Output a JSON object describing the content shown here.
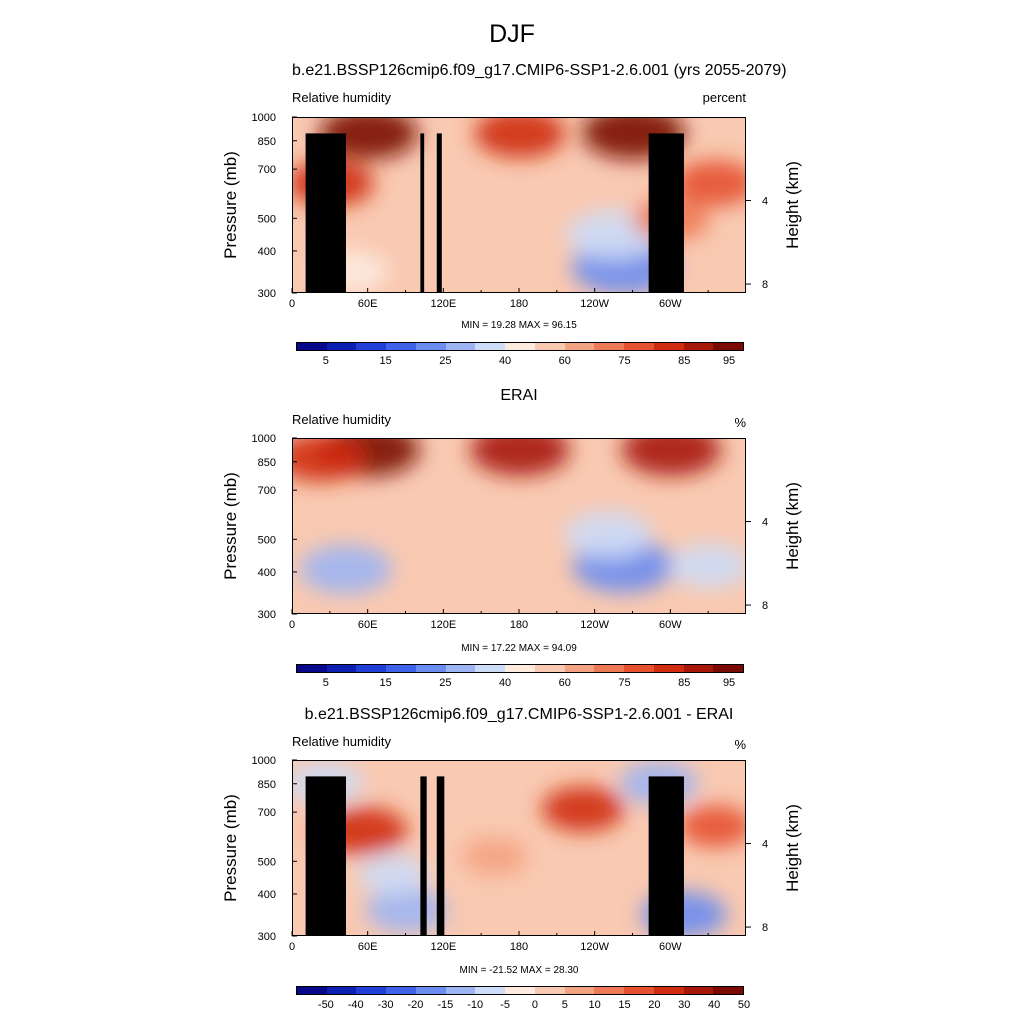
{
  "title": "DJF",
  "palette": [
    "#08088a",
    "#0d1fb0",
    "#1f3fd6",
    "#3e63e8",
    "#6b8def",
    "#9db5f2",
    "#cddcf7",
    "#fdebe0",
    "#f9c9b1",
    "#f4a382",
    "#ee7a55",
    "#e65130",
    "#cf2c12",
    "#a7180a",
    "#7a0a04"
  ],
  "panels": [
    {
      "title": "b.e21.BSSP126cmip6.f09_g17.CMIP6-SSP1-2.6.001 (yrs 2055-2079)",
      "left_label": "Relative humidity",
      "right_label": "percent",
      "y_label": "Pressure (mb)",
      "y2_label": "Height (km)",
      "minmax": "MIN =  19.28  MAX =  96.15",
      "colorbar_labels": [
        "5",
        "15",
        "25",
        "40",
        "60",
        "75",
        "85",
        "95"
      ],
      "chart_data": {
        "type": "heatmap",
        "title": "b.e21.BSSP126cmip6.f09_g17.CMIP6-SSP1-2.6.001 (yrs 2055-2079)",
        "xlabel": "",
        "ylabel": "Pressure (mb)",
        "xlim": [
          0,
          360
        ],
        "ylim": [
          1000,
          300
        ],
        "x_ticks": [
          "0",
          "60E",
          "120E",
          "180",
          "120W",
          "60W"
        ],
        "x_tick_values": [
          0,
          60,
          120,
          180,
          240,
          300
        ],
        "y_ticks": [
          "300",
          "400",
          "500",
          "700",
          "850",
          "1000"
        ],
        "y_tick_values": [
          300,
          400,
          500,
          700,
          850,
          1000
        ],
        "y2_ticks": [
          "8",
          "4"
        ],
        "y2_tick_values_km": [
          8,
          4
        ],
        "min": 19.28,
        "max": 96.15,
        "units": "percent",
        "levels": [
          5,
          10,
          15,
          20,
          25,
          30,
          40,
          50,
          60,
          65,
          75,
          80,
          85,
          90,
          95
        ],
        "background_value": 58,
        "features": [
          {
            "lon": 262,
            "p": 360,
            "value": 22
          },
          {
            "lon": 254,
            "p": 450,
            "value": 30
          },
          {
            "lon": 45,
            "p": 350,
            "value": 45
          },
          {
            "lon": 30,
            "p": 640,
            "value": 80
          },
          {
            "lon": 270,
            "p": 905,
            "value": 94
          },
          {
            "lon": 180,
            "p": 900,
            "value": 84
          },
          {
            "lon": 60,
            "p": 900,
            "value": 90
          },
          {
            "lon": 335,
            "p": 640,
            "value": 78
          },
          {
            "lon": 300,
            "p": 500,
            "value": 72
          }
        ],
        "terrain": [
          {
            "lon": [
              10,
              42
            ],
            "p_top": 900
          },
          {
            "lon": [
              28,
              35
            ],
            "p_top": 850
          },
          {
            "lon": [
              101,
              104
            ],
            "p_top": 900
          },
          {
            "lon": [
              114,
              118
            ],
            "p_top": 900
          },
          {
            "lon": [
              282,
              310
            ],
            "p_top": 900
          }
        ]
      }
    },
    {
      "title": "ERAI",
      "left_label": "Relative humidity",
      "right_label": "%",
      "y_label": "Pressure (mb)",
      "y2_label": "Height (km)",
      "minmax": "MIN =  17.22  MAX =  94.09",
      "colorbar_labels": [
        "5",
        "15",
        "25",
        "40",
        "60",
        "75",
        "85",
        "95"
      ],
      "chart_data": {
        "type": "heatmap",
        "title": "ERAI",
        "xlabel": "",
        "ylabel": "Pressure (mb)",
        "xlim": [
          0,
          360
        ],
        "ylim": [
          1000,
          300
        ],
        "x_ticks": [
          "0",
          "60E",
          "120E",
          "180",
          "120W",
          "60W"
        ],
        "x_tick_values": [
          0,
          60,
          120,
          180,
          240,
          300
        ],
        "y_ticks": [
          "300",
          "400",
          "500",
          "700",
          "850",
          "1000"
        ],
        "y_tick_values": [
          300,
          400,
          500,
          700,
          850,
          1000
        ],
        "y2_ticks": [
          "8",
          "4"
        ],
        "y2_tick_values_km": [
          8,
          4
        ],
        "min": 17.22,
        "max": 94.09,
        "units": "%",
        "levels": [
          5,
          10,
          15,
          20,
          25,
          30,
          40,
          50,
          60,
          65,
          75,
          80,
          85,
          90,
          95
        ],
        "background_value": 55,
        "features": [
          {
            "lon": 262,
            "p": 420,
            "value": 20
          },
          {
            "lon": 250,
            "p": 520,
            "value": 32
          },
          {
            "lon": 42,
            "p": 410,
            "value": 28
          },
          {
            "lon": 330,
            "p": 420,
            "value": 38
          },
          {
            "lon": 180,
            "p": 930,
            "value": 88
          },
          {
            "lon": 60,
            "p": 930,
            "value": 90
          },
          {
            "lon": 300,
            "p": 930,
            "value": 88
          },
          {
            "lon": 22,
            "p": 880,
            "value": 80
          }
        ],
        "terrain": []
      }
    },
    {
      "title": "b.e21.BSSP126cmip6.f09_g17.CMIP6-SSP1-2.6.001 - ERAI",
      "left_label": "Relative humidity",
      "right_label": "%",
      "y_label": "Pressure (mb)",
      "y2_label": "Height (km)",
      "minmax": "MIN = -21.52  MAX =  28.30",
      "colorbar_labels": [
        "-50",
        "-40",
        "-30",
        "-20",
        "-15",
        "-10",
        "-5",
        "0",
        "5",
        "10",
        "15",
        "20",
        "30",
        "40",
        "50"
      ],
      "chart_data": {
        "type": "heatmap",
        "title": "b.e21.BSSP126cmip6.f09_g17.CMIP6-SSP1-2.6.001 - ERAI",
        "xlabel": "",
        "ylabel": "Pressure (mb)",
        "xlim": [
          0,
          360
        ],
        "ylim": [
          1000,
          300
        ],
        "x_ticks": [
          "0",
          "60E",
          "120E",
          "180",
          "120W",
          "60W"
        ],
        "x_tick_values": [
          0,
          60,
          120,
          180,
          240,
          300
        ],
        "y_ticks": [
          "300",
          "400",
          "500",
          "700",
          "850",
          "1000"
        ],
        "y_tick_values": [
          300,
          400,
          500,
          700,
          850,
          1000
        ],
        "y2_ticks": [
          "8",
          "4"
        ],
        "y2_tick_values_km": [
          8,
          4
        ],
        "min": -21.52,
        "max": 28.3,
        "units": "%",
        "levels": [
          -50,
          -40,
          -30,
          -20,
          -15,
          -10,
          -5,
          0,
          5,
          10,
          15,
          20,
          30,
          40,
          50
        ],
        "background_value": 3,
        "features": [
          {
            "lon": 55,
            "p": 620,
            "value": 28
          },
          {
            "lon": 230,
            "p": 720,
            "value": 22
          },
          {
            "lon": 335,
            "p": 640,
            "value": 15
          },
          {
            "lon": 90,
            "p": 360,
            "value": -15
          },
          {
            "lon": 310,
            "p": 350,
            "value": -18
          },
          {
            "lon": 80,
            "p": 460,
            "value": -6
          },
          {
            "lon": 290,
            "p": 860,
            "value": -12
          },
          {
            "lon": 25,
            "p": 860,
            "value": -10
          },
          {
            "lon": 160,
            "p": 520,
            "value": 8
          }
        ],
        "terrain": [
          {
            "lon": [
              10,
              42
            ],
            "p_top": 900
          },
          {
            "lon": [
              28,
              35
            ],
            "p_top": 850
          },
          {
            "lon": [
              101,
              106
            ],
            "p_top": 900
          },
          {
            "lon": [
              114,
              120
            ],
            "p_top": 900
          },
          {
            "lon": [
              282,
              310
            ],
            "p_top": 900
          }
        ]
      }
    }
  ]
}
